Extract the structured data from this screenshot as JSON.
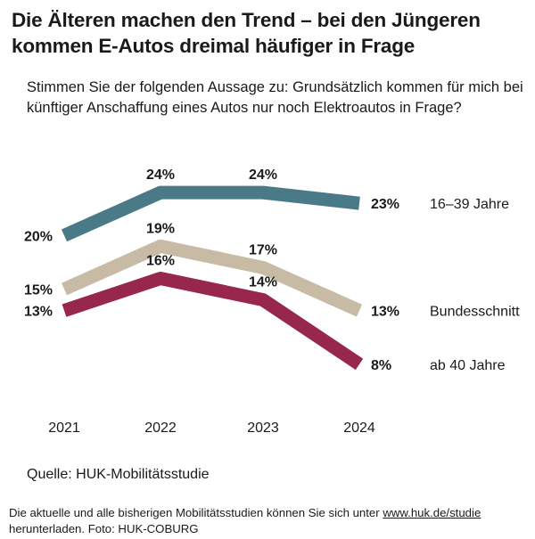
{
  "title": "Die Älteren machen den Trend – bei den Jüngeren kommen E-Autos dreimal häufiger in Frage",
  "subtitle": "Stimmen Sie der folgenden Aussage zu: Grundsätzlich kommen für mich bei künftiger Anschaffung eines Autos nur noch Elektroautos in Frage?",
  "source": "Quelle: HUK-Mobilitätsstudie",
  "footer": {
    "text_before": "Die aktuelle und alle bisherigen Mobilitätsstudien können Sie sich unter ",
    "link": "www.huk.de/studie",
    "text_after": " herunterladen. Foto: HUK-COBURG"
  },
  "chart_data": {
    "type": "line",
    "x": [
      "2021",
      "2022",
      "2023",
      "2024"
    ],
    "ylim": [
      5,
      27
    ],
    "grid": false,
    "legend": "right, labels at line ends",
    "series": [
      {
        "name": "16–39 Jahre",
        "values": [
          20,
          24,
          24,
          23
        ],
        "labels": [
          "20%",
          "24%",
          "24%",
          "23%"
        ],
        "color": "#4a7a87"
      },
      {
        "name": "Bundesschnitt",
        "values": [
          15,
          19,
          17,
          13
        ],
        "labels": [
          "15%",
          "19%",
          "17%",
          "13%"
        ],
        "color": "#c8bba5"
      },
      {
        "name": "ab 40 Jahre",
        "values": [
          13,
          16,
          14,
          8
        ],
        "labels": [
          "13%",
          "16%",
          "14%",
          "8%"
        ],
        "color": "#98274e"
      }
    ]
  }
}
